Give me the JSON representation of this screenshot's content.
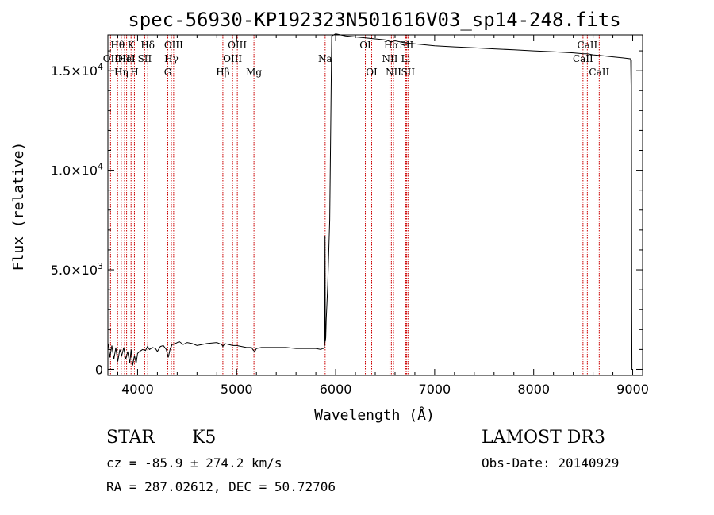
{
  "chart_data": {
    "type": "line",
    "title": "spec-56930-KP192323N501616V03_sp14-248.fits",
    "xlabel": "Wavelength (Å)",
    "ylabel": "Flux (relative)",
    "xlim": [
      3700,
      9100
    ],
    "ylim": [
      -300,
      16800
    ],
    "x_ticks": [
      4000,
      5000,
      6000,
      7000,
      8000,
      9000
    ],
    "x_tick_labels": [
      "4000",
      "5000",
      "6000",
      "7000",
      "8000",
      "9000"
    ],
    "y_ticks": [
      0,
      5000,
      10000,
      15000
    ],
    "y_tick_labels": [
      {
        "mant": "0",
        "exp": ""
      },
      {
        "mant": "5.0×10",
        "exp": "3"
      },
      {
        "mant": "1.0×10",
        "exp": "4"
      },
      {
        "mant": "1.5×10",
        "exp": "4"
      }
    ],
    "series": [
      {
        "name": "flux",
        "x": [
          3705,
          3720,
          3740,
          3760,
          3780,
          3800,
          3820,
          3840,
          3860,
          3880,
          3900,
          3920,
          3935,
          3950,
          3968,
          3985,
          4000,
          4020,
          4050,
          4080,
          4100,
          4120,
          4150,
          4180,
          4200,
          4230,
          4260,
          4290,
          4310,
          4330,
          4350,
          4380,
          4420,
          4460,
          4500,
          4550,
          4600,
          4700,
          4800,
          4850,
          4861,
          4880,
          4920,
          4960,
          5000,
          5050,
          5100,
          5150,
          5170,
          5184,
          5200,
          5250,
          5300,
          5400,
          5500,
          5600,
          5700,
          5800,
          5850,
          5870,
          5880,
          5885,
          5890,
          5893,
          5896,
          5900,
          5905,
          5920,
          5940,
          5960,
          6000,
          6050,
          6100,
          6200,
          6300,
          6400,
          6500,
          6563,
          6600,
          6700,
          6800,
          6900,
          7000,
          7200,
          7400,
          7600,
          7800,
          8000,
          8200,
          8400,
          8500,
          8542,
          8600,
          8700,
          8800,
          8900,
          8980,
          8985,
          8987,
          8990,
          8993,
          9000
        ],
        "y": [
          1300,
          600,
          1200,
          500,
          1100,
          400,
          1000,
          700,
          1100,
          500,
          900,
          300,
          1000,
          200,
          700,
          300,
          800,
          900,
          1000,
          950,
          1150,
          1000,
          1100,
          1050,
          900,
          1150,
          1200,
          1000,
          600,
          1050,
          1250,
          1300,
          1400,
          1250,
          1350,
          1300,
          1200,
          1300,
          1350,
          1250,
          1150,
          1300,
          1250,
          1200,
          1200,
          1150,
          1100,
          1100,
          950,
          900,
          1050,
          1100,
          1100,
          1100,
          1100,
          1050,
          1050,
          1050,
          1000,
          1050,
          1050,
          1100,
          1300,
          6700,
          1400,
          1600,
          2500,
          4200,
          7500,
          16750,
          16850,
          16800,
          16750,
          16700,
          16650,
          16600,
          16550,
          16450,
          16500,
          16400,
          16350,
          16300,
          16250,
          16200,
          16150,
          16100,
          16050,
          16000,
          15950,
          15900,
          15850,
          15850,
          15800,
          15750,
          15700,
          15650,
          15600,
          14000,
          15550,
          3000,
          0,
          0
        ]
      }
    ],
    "line_markers": [
      {
        "name": "Hθ",
        "wave": 3798,
        "row": 1
      },
      {
        "name": "OII",
        "wave": 3727,
        "row": 2
      },
      {
        "name": "Hη",
        "wave": 3835,
        "row": 3
      },
      {
        "name": "OIII",
        "wave": 3868,
        "row": 2
      },
      {
        "name": "K",
        "wave": 3934,
        "row": 1
      },
      {
        "name": "HeI",
        "wave": 3889,
        "row": 2
      },
      {
        "name": "H",
        "wave": 3968,
        "row": 3
      },
      {
        "name": "Hδ",
        "wave": 4102,
        "row": 1
      },
      {
        "name": "SII",
        "wave": 4072,
        "row": 2
      },
      {
        "name": "OIII",
        "wave": 4364,
        "row": 1
      },
      {
        "name": "Hγ",
        "wave": 4341,
        "row": 2
      },
      {
        "name": "G",
        "wave": 4305,
        "row": 3
      },
      {
        "name": "OIII",
        "wave": 5007,
        "row": 1
      },
      {
        "name": "OIII",
        "wave": 4959,
        "row": 2
      },
      {
        "name": "Hβ",
        "wave": 4861,
        "row": 3
      },
      {
        "name": "Mg",
        "wave": 5175,
        "row": 3
      },
      {
        "name": "Na",
        "wave": 5894,
        "row": 2
      },
      {
        "name": "OI",
        "wave": 6300,
        "row": 1
      },
      {
        "name": "OI",
        "wave": 6364,
        "row": 3
      },
      {
        "name": "Hα",
        "wave": 6563,
        "row": 1
      },
      {
        "name": "NII",
        "wave": 6548,
        "row": 2
      },
      {
        "name": "NII",
        "wave": 6584,
        "row": 3
      },
      {
        "name": "SII",
        "wave": 6717,
        "row": 1
      },
      {
        "name": "Li",
        "wave": 6708,
        "row": 2
      },
      {
        "name": "SII",
        "wave": 6731,
        "row": 3
      },
      {
        "name": "CaII",
        "wave": 8542,
        "row": 1
      },
      {
        "name": "CaII",
        "wave": 8498,
        "row": 2
      },
      {
        "name": "CaII",
        "wave": 8662,
        "row": 3
      }
    ],
    "colors": {
      "spectrum": "#000000",
      "markers": "#cc0000",
      "axes": "#000000"
    }
  },
  "info": {
    "object_class": "STAR",
    "subclass": "K5",
    "survey": "LAMOST DR3",
    "cz": "cz = -85.9 ± 274.2 km/s",
    "obs_date": "Obs-Date: 20140929",
    "coords": "RA = 287.02612, DEC =  50.72706"
  }
}
